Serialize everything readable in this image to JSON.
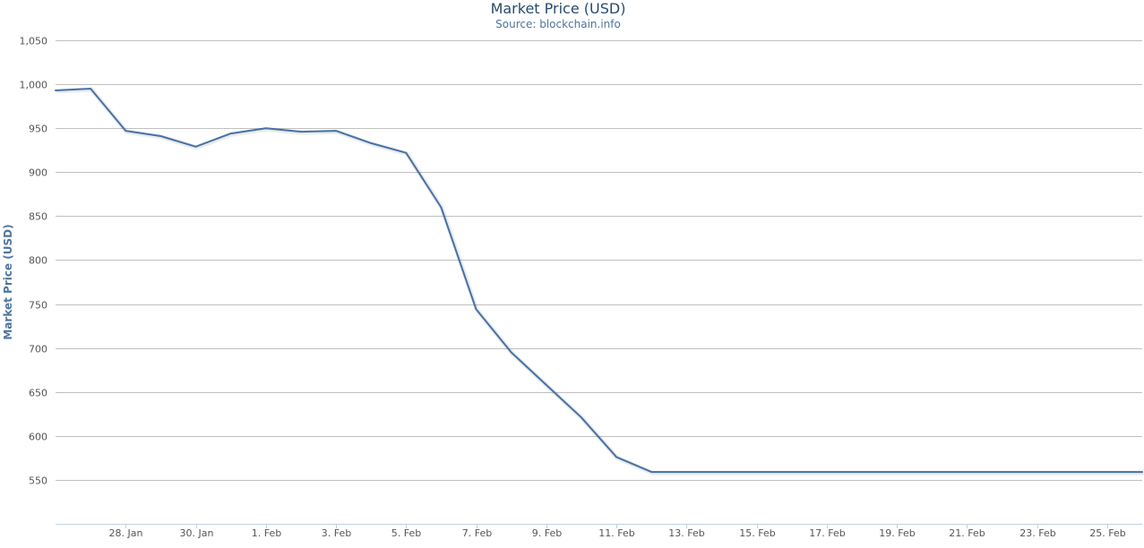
{
  "chart_data": {
    "type": "line",
    "title": "Market Price (USD)",
    "subtitle": "Source: blockchain.info",
    "ylabel": "Market Price (USD)",
    "xlabel": "",
    "ylim": [
      500,
      1050
    ],
    "yticks": [
      550,
      600,
      650,
      700,
      750,
      800,
      850,
      900,
      950,
      1000,
      1050
    ],
    "ytick_labels": [
      "550",
      "600",
      "650",
      "700",
      "750",
      "800",
      "850",
      "900",
      "950",
      "1,000",
      "1,050"
    ],
    "xlim": [
      "2014-01-26",
      "2014-02-26"
    ],
    "xticks": [
      "2014-01-28",
      "2014-01-30",
      "2014-02-01",
      "2014-02-03",
      "2014-02-05",
      "2014-02-07",
      "2014-02-09",
      "2014-02-11",
      "2014-02-13",
      "2014-02-15",
      "2014-02-17",
      "2014-02-19",
      "2014-02-21",
      "2014-02-23",
      "2014-02-25"
    ],
    "xtick_labels": [
      "28. Jan",
      "30. Jan",
      "1. Feb",
      "3. Feb",
      "5. Feb",
      "7. Feb",
      "9. Feb",
      "11. Feb",
      "13. Feb",
      "15. Feb",
      "17. Feb",
      "19. Feb",
      "21. Feb",
      "23. Feb",
      "25. Feb"
    ],
    "grid": true,
    "legend": "none",
    "line_color": "#4572a7",
    "series": [
      {
        "x": [
          "2014-01-26",
          "2014-01-27",
          "2014-01-28",
          "2014-01-29",
          "2014-01-30",
          "2014-01-31",
          "2014-02-01",
          "2014-02-02",
          "2014-02-03",
          "2014-02-04",
          "2014-02-05",
          "2014-02-06",
          "2014-02-07",
          "2014-02-08",
          "2014-02-09",
          "2014-02-10",
          "2014-02-11",
          "2014-02-12",
          "2014-02-13",
          "2014-02-14",
          "2014-02-15",
          "2014-02-16",
          "2014-02-17",
          "2014-02-18",
          "2014-02-19",
          "2014-02-20",
          "2014-02-21",
          "2014-02-22",
          "2014-02-23",
          "2014-02-24",
          "2014-02-25",
          "2014-02-26"
        ],
        "values": [
          993,
          995,
          947,
          941,
          929,
          944,
          950,
          946,
          947,
          933,
          922,
          860,
          744,
          695,
          658,
          621,
          576,
          559,
          559,
          559,
          559,
          559,
          559,
          559,
          559,
          559,
          559,
          559,
          559,
          559,
          559,
          559
        ]
      }
    ]
  }
}
